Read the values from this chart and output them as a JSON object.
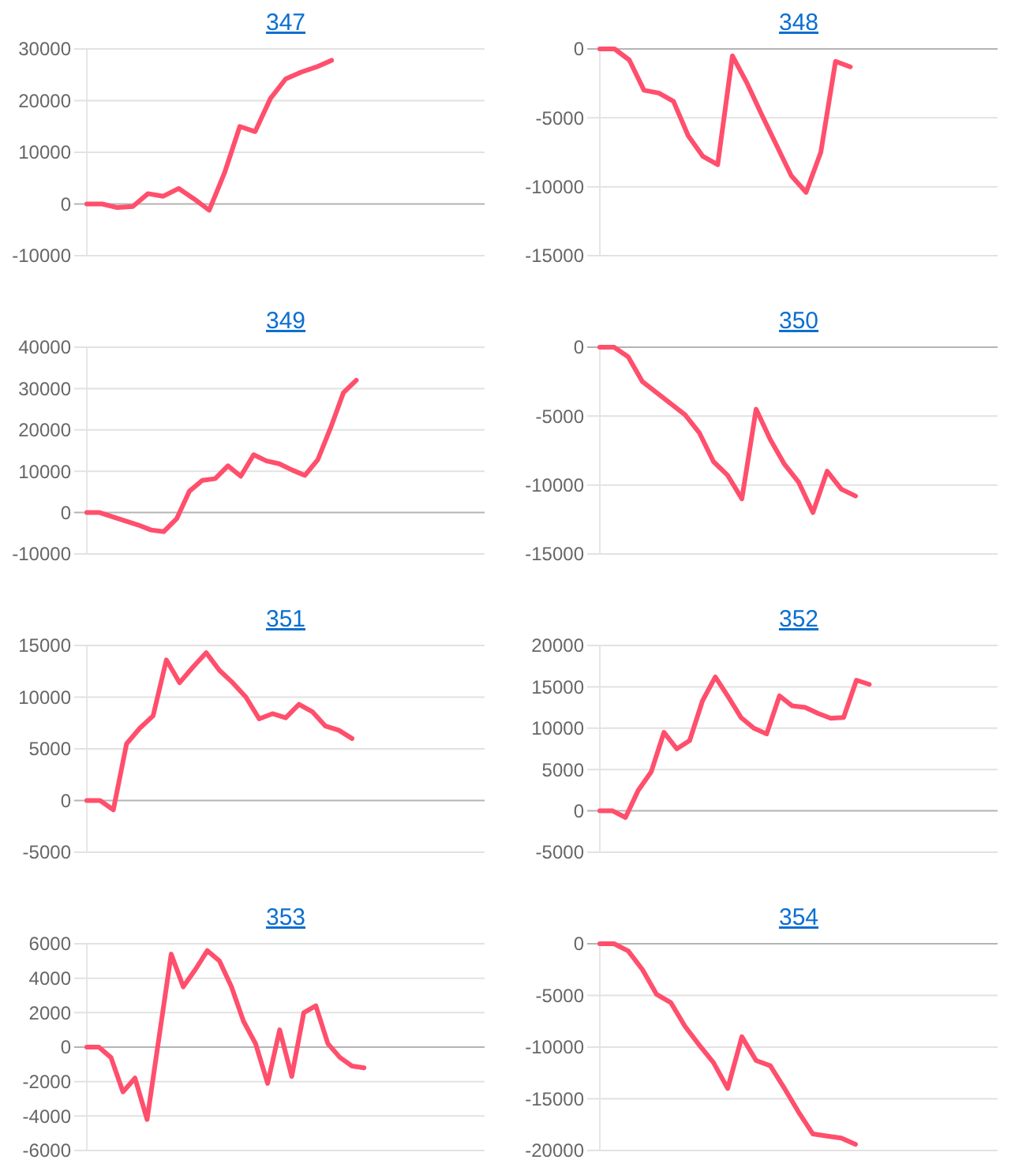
{
  "chart_data": [
    {
      "type": "line",
      "title": "347",
      "categories": [
        null,
        null,
        null,
        null,
        null,
        null,
        null,
        null,
        null,
        null,
        null,
        null,
        null,
        null,
        null,
        null,
        null,
        null,
        null,
        null,
        null,
        null,
        null,
        null,
        null,
        null,
        null
      ],
      "color": "#ff4f6c",
      "values": [
        0,
        0,
        -700,
        -500,
        2000,
        1500,
        3000,
        1000,
        -1200,
        6000,
        15000,
        14000,
        20400,
        24200,
        25500,
        26500,
        27800,
        null,
        null,
        null,
        null,
        null,
        null,
        null,
        null,
        null,
        null
      ],
      "ylim": [
        -10000,
        30000
      ],
      "yticks": [
        -10000,
        0,
        10000,
        20000,
        30000
      ],
      "grid": "y",
      "tick_labels": "y"
    },
    {
      "type": "line",
      "title": "348",
      "categories": [
        null,
        null,
        null,
        null,
        null,
        null,
        null,
        null,
        null,
        null,
        null,
        null,
        null,
        null,
        null,
        null,
        null,
        null,
        null,
        null,
        null,
        null,
        null,
        null,
        null,
        null,
        null,
        null
      ],
      "color": "#ff4f6c",
      "values": [
        0,
        0,
        -800,
        -3000,
        -3200,
        -3800,
        -6300,
        -7800,
        -8400,
        -500,
        -2500,
        -4800,
        -7000,
        -9200,
        -10400,
        -7500,
        -900,
        -1300,
        null,
        null,
        null,
        null,
        null,
        null,
        null,
        null,
        null,
        null
      ],
      "ylim": [
        -15000,
        0
      ],
      "yticks": [
        -15000,
        -10000,
        -5000,
        0
      ],
      "grid": "y",
      "tick_labels": "y"
    },
    {
      "type": "line",
      "title": "349",
      "categories": [
        null,
        null,
        null,
        null,
        null,
        null,
        null,
        null,
        null,
        null,
        null,
        null,
        null,
        null,
        null,
        null,
        null,
        null,
        null,
        null,
        null,
        null,
        null,
        null,
        null,
        null,
        null,
        null,
        null,
        null,
        null,
        null
      ],
      "color": "#ff4f6c",
      "values": [
        0,
        0,
        -1000,
        -2000,
        -3000,
        -4200,
        -4600,
        -1500,
        5200,
        7800,
        8200,
        11300,
        8800,
        14000,
        12500,
        11800,
        10300,
        9000,
        12800,
        20500,
        29000,
        32000,
        null,
        null,
        null,
        null,
        null,
        null,
        null,
        null,
        null,
        null
      ],
      "ylim": [
        -10000,
        40000
      ],
      "yticks": [
        -10000,
        0,
        10000,
        20000,
        30000,
        40000
      ],
      "grid": "y",
      "tick_labels": "y"
    },
    {
      "type": "line",
      "title": "350",
      "categories": [
        null,
        null,
        null,
        null,
        null,
        null,
        null,
        null,
        null,
        null,
        null,
        null,
        null,
        null,
        null,
        null,
        null,
        null,
        null,
        null,
        null,
        null,
        null,
        null,
        null,
        null,
        null,
        null,
        null
      ],
      "color": "#ff4f6c",
      "values": [
        0,
        0,
        -700,
        -2500,
        -3300,
        -4100,
        -4900,
        -6200,
        -8300,
        -9300,
        -11000,
        -4500,
        -6700,
        -8500,
        -9800,
        -12000,
        -9000,
        -10300,
        -10800,
        null,
        null,
        null,
        null,
        null,
        null,
        null,
        null,
        null,
        null
      ],
      "ylim": [
        -15000,
        0
      ],
      "yticks": [
        -15000,
        -10000,
        -5000,
        0
      ],
      "grid": "y",
      "tick_labels": "y"
    },
    {
      "type": "line",
      "title": "351",
      "categories": [
        null,
        null,
        null,
        null,
        null,
        null,
        null,
        null,
        null,
        null,
        null,
        null,
        null,
        null,
        null,
        null,
        null,
        null,
        null,
        null,
        null,
        null,
        null,
        null,
        null,
        null,
        null,
        null,
        null,
        null,
        null
      ],
      "color": "#ff4f6c",
      "values": [
        0,
        0,
        -900,
        5500,
        7000,
        8200,
        13600,
        11400,
        12900,
        14300,
        12600,
        11400,
        10000,
        7900,
        8400,
        8000,
        9300,
        8600,
        7200,
        6800,
        6000,
        null,
        null,
        null,
        null,
        null,
        null,
        null,
        null,
        null,
        null
      ],
      "ylim": [
        -5000,
        15000
      ],
      "yticks": [
        -5000,
        0,
        5000,
        10000,
        15000
      ],
      "grid": "y",
      "tick_labels": "y"
    },
    {
      "type": "line",
      "title": "352",
      "categories": [
        null,
        null,
        null,
        null,
        null,
        null,
        null,
        null,
        null,
        null,
        null,
        null,
        null,
        null,
        null,
        null,
        null,
        null,
        null,
        null,
        null,
        null,
        null,
        null,
        null,
        null,
        null,
        null,
        null,
        null,
        null,
        null
      ],
      "color": "#ff4f6c",
      "values": [
        0,
        0,
        -800,
        2500,
        4700,
        9500,
        7500,
        8500,
        13300,
        16200,
        13800,
        11300,
        10000,
        9300,
        13900,
        12700,
        12500,
        11800,
        11200,
        11300,
        15800,
        15300,
        null,
        null,
        null,
        null,
        null,
        null,
        null,
        null,
        null,
        null
      ],
      "ylim": [
        -5000,
        20000
      ],
      "yticks": [
        -5000,
        0,
        5000,
        10000,
        15000,
        20000
      ],
      "grid": "y",
      "tick_labels": "y"
    },
    {
      "type": "line",
      "title": "353",
      "categories": [
        null,
        null,
        null,
        null,
        null,
        null,
        null,
        null,
        null,
        null,
        null,
        null,
        null,
        null,
        null,
        null,
        null,
        null,
        null,
        null,
        null,
        null,
        null,
        null,
        null,
        null,
        null,
        null,
        null,
        null,
        null,
        null,
        null,
        null
      ],
      "color": "#ff4f6c",
      "values": [
        0,
        0,
        -600,
        -2600,
        -1800,
        -4200,
        600,
        5400,
        3500,
        4500,
        5600,
        5000,
        3500,
        1500,
        200,
        -2100,
        1000,
        -1700,
        2000,
        2400,
        200,
        -600,
        -1100,
        -1200,
        null,
        null,
        null,
        null,
        null,
        null,
        null,
        null,
        null,
        null
      ],
      "ylim": [
        -6000,
        6000
      ],
      "yticks": [
        -6000,
        -4000,
        -2000,
        0,
        2000,
        4000,
        6000
      ],
      "grid": "y",
      "tick_labels": "y"
    },
    {
      "type": "line",
      "title": "354",
      "categories": [
        null,
        null,
        null,
        null,
        null,
        null,
        null,
        null,
        null,
        null,
        null,
        null,
        null,
        null,
        null,
        null,
        null,
        null,
        null,
        null,
        null,
        null,
        null,
        null,
        null,
        null,
        null,
        null,
        null
      ],
      "color": "#ff4f6c",
      "values": [
        0,
        0,
        -700,
        -2500,
        -4900,
        -5700,
        -8000,
        -9800,
        -11500,
        -14000,
        -9000,
        -11300,
        -11800,
        -14000,
        -16300,
        -18400,
        -18600,
        -18800,
        -19400,
        null,
        null,
        null,
        null,
        null,
        null,
        null,
        null,
        null,
        null
      ],
      "ylim": [
        -20000,
        0
      ],
      "yticks": [
        -20000,
        -15000,
        -10000,
        -5000,
        0
      ],
      "grid": "y",
      "tick_labels": "y"
    }
  ]
}
